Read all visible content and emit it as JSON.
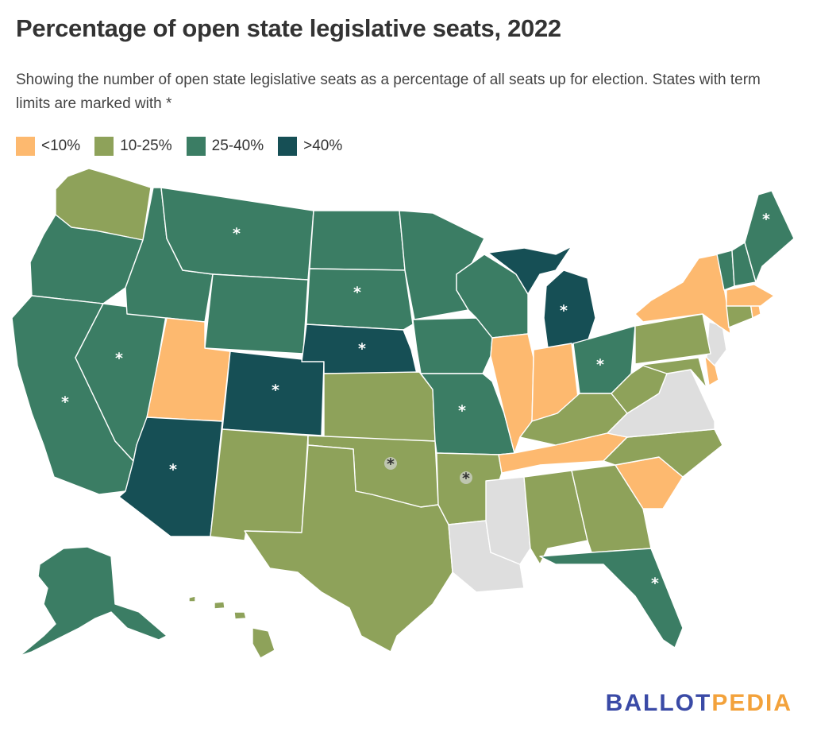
{
  "title": "Percentage of open state legislative seats, 2022",
  "subtitle": "Showing the number of open state legislative seats as a percentage of all seats up for election. States with term limits are marked with *",
  "legend": [
    {
      "label": "<10%",
      "color": "#fdb96f"
    },
    {
      "label": "10-25%",
      "color": "#8ea25a"
    },
    {
      "label": "25-40%",
      "color": "#3b7d64"
    },
    {
      "label": ">40%",
      "color": "#164f55"
    }
  ],
  "no_data_color": "#dedede",
  "term_limit_marker": "*",
  "map_states": [
    {
      "id": "WA",
      "category": "10-25%",
      "term_limits": false
    },
    {
      "id": "OR",
      "category": "25-40%",
      "term_limits": false
    },
    {
      "id": "CA",
      "category": "25-40%",
      "term_limits": true
    },
    {
      "id": "NV",
      "category": "25-40%",
      "term_limits": true
    },
    {
      "id": "ID",
      "category": "25-40%",
      "term_limits": false
    },
    {
      "id": "MT",
      "category": "25-40%",
      "term_limits": true
    },
    {
      "id": "WY",
      "category": "25-40%",
      "term_limits": false
    },
    {
      "id": "UT",
      "category": "<10%",
      "term_limits": false
    },
    {
      "id": "AZ",
      "category": ">40%",
      "term_limits": true
    },
    {
      "id": "CO",
      "category": ">40%",
      "term_limits": true
    },
    {
      "id": "NM",
      "category": "10-25%",
      "term_limits": false
    },
    {
      "id": "ND",
      "category": "25-40%",
      "term_limits": false
    },
    {
      "id": "SD",
      "category": "25-40%",
      "term_limits": true
    },
    {
      "id": "NE",
      "category": ">40%",
      "term_limits": true
    },
    {
      "id": "KS",
      "category": "10-25%",
      "term_limits": false
    },
    {
      "id": "OK",
      "category": "10-25%",
      "term_limits": true
    },
    {
      "id": "TX",
      "category": "10-25%",
      "term_limits": false
    },
    {
      "id": "MN",
      "category": "25-40%",
      "term_limits": false
    },
    {
      "id": "IA",
      "category": "25-40%",
      "term_limits": false
    },
    {
      "id": "MO",
      "category": "25-40%",
      "term_limits": true
    },
    {
      "id": "AR",
      "category": "10-25%",
      "term_limits": true
    },
    {
      "id": "LA",
      "category": "none",
      "term_limits": false
    },
    {
      "id": "WI",
      "category": "25-40%",
      "term_limits": false
    },
    {
      "id": "IL",
      "category": "<10%",
      "term_limits": false
    },
    {
      "id": "MI",
      "category": ">40%",
      "term_limits": true
    },
    {
      "id": "IN",
      "category": "<10%",
      "term_limits": false
    },
    {
      "id": "OH",
      "category": "25-40%",
      "term_limits": true
    },
    {
      "id": "KY",
      "category": "10-25%",
      "term_limits": false
    },
    {
      "id": "TN",
      "category": "<10%",
      "term_limits": false
    },
    {
      "id": "MS",
      "category": "none",
      "term_limits": false
    },
    {
      "id": "AL",
      "category": "10-25%",
      "term_limits": false
    },
    {
      "id": "GA",
      "category": "10-25%",
      "term_limits": false
    },
    {
      "id": "FL",
      "category": "25-40%",
      "term_limits": true
    },
    {
      "id": "SC",
      "category": "<10%",
      "term_limits": false
    },
    {
      "id": "NC",
      "category": "10-25%",
      "term_limits": false
    },
    {
      "id": "VA",
      "category": "none",
      "term_limits": false
    },
    {
      "id": "WV",
      "category": "10-25%",
      "term_limits": false
    },
    {
      "id": "MD",
      "category": "10-25%",
      "term_limits": false
    },
    {
      "id": "DE",
      "category": "<10%",
      "term_limits": false
    },
    {
      "id": "NJ",
      "category": "none",
      "term_limits": false
    },
    {
      "id": "PA",
      "category": "10-25%",
      "term_limits": false
    },
    {
      "id": "NY",
      "category": "<10%",
      "term_limits": false
    },
    {
      "id": "CT",
      "category": "10-25%",
      "term_limits": false
    },
    {
      "id": "RI",
      "category": "<10%",
      "term_limits": false
    },
    {
      "id": "MA",
      "category": "<10%",
      "term_limits": false
    },
    {
      "id": "VT",
      "category": "25-40%",
      "term_limits": false
    },
    {
      "id": "NH",
      "category": "25-40%",
      "term_limits": false
    },
    {
      "id": "ME",
      "category": "25-40%",
      "term_limits": true
    },
    {
      "id": "AK",
      "category": "25-40%",
      "term_limits": false
    },
    {
      "id": "HI",
      "category": "10-25%",
      "term_limits": false
    }
  ],
  "logo": {
    "part1": "BALLOT",
    "part2": "PEDIA"
  }
}
